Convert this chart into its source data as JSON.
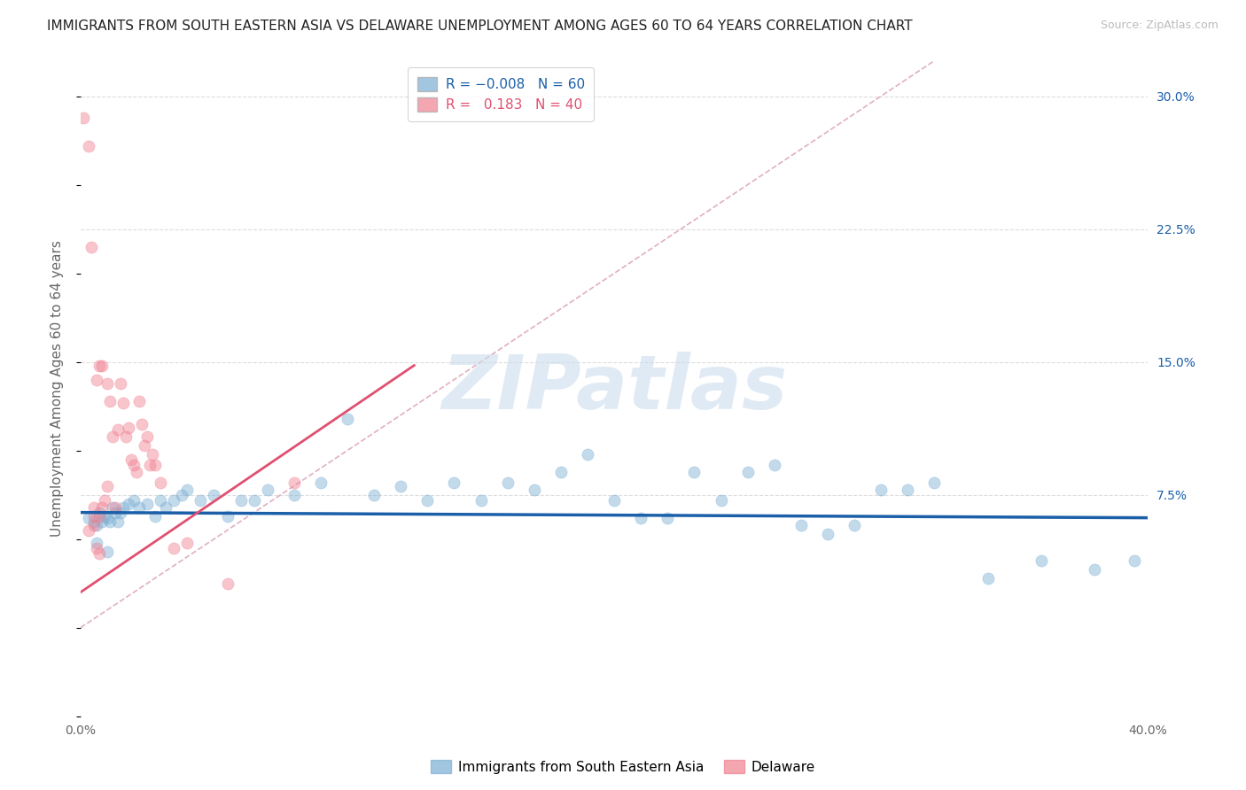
{
  "title": "IMMIGRANTS FROM SOUTH EASTERN ASIA VS DELAWARE UNEMPLOYMENT AMONG AGES 60 TO 64 YEARS CORRELATION CHART",
  "source": "Source: ZipAtlas.com",
  "ylabel": "Unemployment Among Ages 60 to 64 years",
  "xlim": [
    0.0,
    0.4
  ],
  "ylim": [
    -0.05,
    0.32
  ],
  "xticks": [
    0.0,
    0.1,
    0.2,
    0.3,
    0.4
  ],
  "xticklabels": [
    "0.0%",
    "",
    "",
    "",
    "40.0%"
  ],
  "yticks_right": [
    0.075,
    0.15,
    0.225,
    0.3
  ],
  "yticklabels_right": [
    "7.5%",
    "15.0%",
    "22.5%",
    "30.0%"
  ],
  "watermark": "ZIPatlas",
  "blue_scatter_x": [
    0.003,
    0.005,
    0.006,
    0.007,
    0.008,
    0.009,
    0.01,
    0.011,
    0.012,
    0.013,
    0.014,
    0.015,
    0.016,
    0.018,
    0.02,
    0.022,
    0.025,
    0.028,
    0.03,
    0.032,
    0.035,
    0.038,
    0.04,
    0.045,
    0.05,
    0.055,
    0.06,
    0.065,
    0.07,
    0.08,
    0.09,
    0.1,
    0.11,
    0.12,
    0.13,
    0.14,
    0.15,
    0.16,
    0.17,
    0.18,
    0.19,
    0.2,
    0.21,
    0.22,
    0.23,
    0.24,
    0.25,
    0.26,
    0.27,
    0.28,
    0.29,
    0.3,
    0.31,
    0.32,
    0.34,
    0.36,
    0.38,
    0.395,
    0.006,
    0.01
  ],
  "blue_scatter_y": [
    0.062,
    0.06,
    0.058,
    0.065,
    0.06,
    0.063,
    0.062,
    0.06,
    0.068,
    0.065,
    0.06,
    0.065,
    0.068,
    0.07,
    0.072,
    0.068,
    0.07,
    0.063,
    0.072,
    0.068,
    0.072,
    0.075,
    0.078,
    0.072,
    0.075,
    0.063,
    0.072,
    0.072,
    0.078,
    0.075,
    0.082,
    0.118,
    0.075,
    0.08,
    0.072,
    0.082,
    0.072,
    0.082,
    0.078,
    0.088,
    0.098,
    0.072,
    0.062,
    0.062,
    0.088,
    0.072,
    0.088,
    0.092,
    0.058,
    0.053,
    0.058,
    0.078,
    0.078,
    0.082,
    0.028,
    0.038,
    0.033,
    0.038,
    0.048,
    0.043
  ],
  "pink_scatter_x": [
    0.001,
    0.003,
    0.004,
    0.005,
    0.005,
    0.006,
    0.006,
    0.007,
    0.007,
    0.008,
    0.008,
    0.009,
    0.01,
    0.01,
    0.011,
    0.012,
    0.013,
    0.014,
    0.015,
    0.016,
    0.017,
    0.018,
    0.019,
    0.02,
    0.021,
    0.022,
    0.023,
    0.024,
    0.025,
    0.026,
    0.027,
    0.028,
    0.03,
    0.035,
    0.04,
    0.055,
    0.003,
    0.005,
    0.007,
    0.08
  ],
  "pink_scatter_y": [
    0.288,
    0.272,
    0.215,
    0.063,
    0.068,
    0.045,
    0.14,
    0.148,
    0.063,
    0.148,
    0.068,
    0.072,
    0.08,
    0.138,
    0.128,
    0.108,
    0.068,
    0.112,
    0.138,
    0.127,
    0.108,
    0.113,
    0.095,
    0.092,
    0.088,
    0.128,
    0.115,
    0.103,
    0.108,
    0.092,
    0.098,
    0.092,
    0.082,
    0.045,
    0.048,
    0.025,
    0.055,
    0.058,
    0.042,
    0.082
  ],
  "blue_line_x": [
    0.0,
    0.4
  ],
  "blue_line_y": [
    0.065,
    0.062
  ],
  "pink_line_x": [
    0.0,
    0.125
  ],
  "pink_line_y": [
    0.02,
    0.148
  ],
  "diagonal_line_x": [
    0.0,
    0.32
  ],
  "diagonal_line_y": [
    0.0,
    0.32
  ],
  "scatter_size": 90,
  "scatter_alpha": 0.45,
  "blue_color": "#7bafd4",
  "pink_color": "#f08090",
  "blue_line_color": "#1a5fa8",
  "pink_line_color": "#e05070",
  "diagonal_color": "#e0b0c0",
  "background_color": "#ffffff",
  "grid_color": "#dddddd",
  "title_fontsize": 11,
  "axis_label_fontsize": 11,
  "tick_fontsize": 10,
  "legend_fontsize": 11
}
